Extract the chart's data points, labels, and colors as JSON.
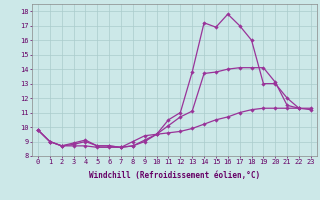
{
  "background_color": "#cce8e8",
  "grid_color": "#aacccc",
  "line_color": "#993399",
  "xlabel": "Windchill (Refroidissement éolien,°C)",
  "xlabel_color": "#660066",
  "xlim": [
    -0.5,
    23.5
  ],
  "ylim": [
    8.0,
    18.5
  ],
  "yticks": [
    8,
    9,
    10,
    11,
    12,
    13,
    14,
    15,
    16,
    17,
    18
  ],
  "xticks": [
    0,
    1,
    2,
    3,
    4,
    5,
    6,
    7,
    8,
    9,
    10,
    11,
    12,
    13,
    14,
    15,
    16,
    17,
    18,
    19,
    20,
    21,
    22,
    23
  ],
  "line1_x": [
    0,
    1,
    2,
    3,
    4,
    5,
    6,
    7,
    8,
    9,
    10,
    11,
    12,
    13,
    14,
    15,
    16,
    17,
    18,
    19,
    20,
    21,
    22
  ],
  "line1_y": [
    9.8,
    9.0,
    8.7,
    8.7,
    8.7,
    8.6,
    8.6,
    8.6,
    9.0,
    9.4,
    9.5,
    10.5,
    11.0,
    13.8,
    17.2,
    16.9,
    17.8,
    17.0,
    16.0,
    13.0,
    13.0,
    12.0,
    11.3
  ],
  "line2_x": [
    0,
    1,
    2,
    3,
    4,
    5,
    6,
    7,
    8,
    9,
    10,
    11,
    12,
    13,
    14,
    15,
    16,
    17,
    18,
    19,
    20,
    21,
    22,
    23
  ],
  "line2_y": [
    9.8,
    9.0,
    8.7,
    8.9,
    9.1,
    8.7,
    8.7,
    8.6,
    8.7,
    9.0,
    9.5,
    10.1,
    10.7,
    11.1,
    13.7,
    13.8,
    14.0,
    14.1,
    14.1,
    14.1,
    13.1,
    11.5,
    11.3,
    11.2
  ],
  "line3_x": [
    0,
    1,
    2,
    3,
    4,
    5,
    6,
    7,
    8,
    9,
    10,
    11,
    12,
    13,
    14,
    15,
    16,
    17,
    18,
    19,
    20,
    21,
    22,
    23
  ],
  "line3_y": [
    9.8,
    9.0,
    8.7,
    8.8,
    9.0,
    8.7,
    8.7,
    8.6,
    8.7,
    9.1,
    9.5,
    9.6,
    9.7,
    9.9,
    10.2,
    10.5,
    10.7,
    11.0,
    11.2,
    11.3,
    11.3,
    11.3,
    11.3,
    11.3
  ],
  "tick_fontsize": 5,
  "xlabel_fontsize": 5.5
}
